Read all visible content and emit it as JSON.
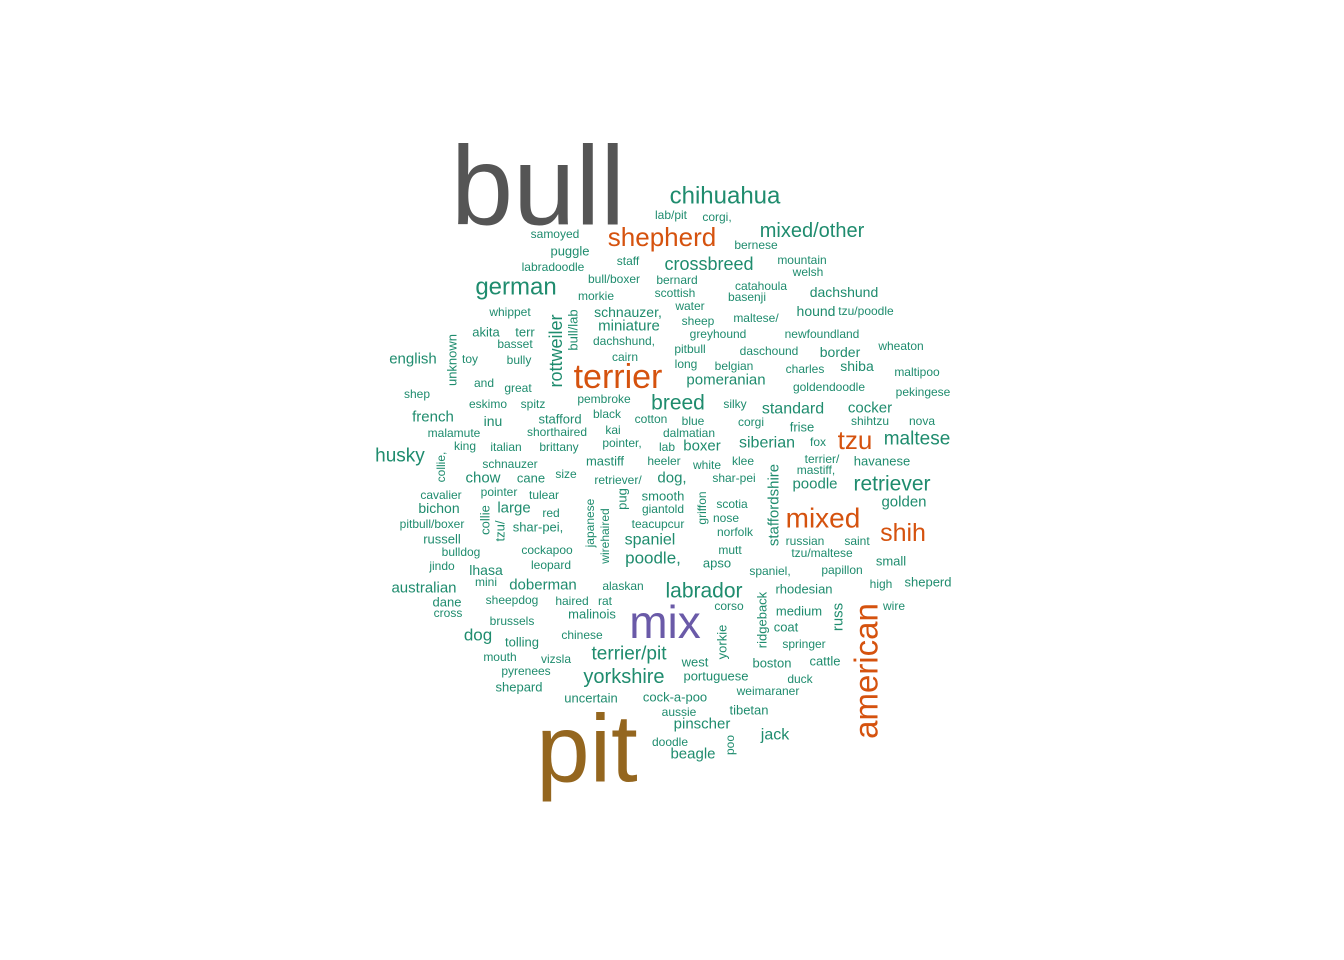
{
  "wordcloud": {
    "colors": {
      "top1": "#555555",
      "top2": "#94661f",
      "top3": "#6a5aa8",
      "orange": "#d5520e",
      "teal": "#1f8c6e"
    },
    "words": [
      {
        "text": "bull",
        "tier": "top1"
      },
      {
        "text": "pit",
        "tier": "top2"
      },
      {
        "text": "mix",
        "tier": "top3"
      },
      {
        "text": "american",
        "tier": "orange"
      },
      {
        "text": "terrier",
        "tier": "orange"
      },
      {
        "text": "shepherd",
        "tier": "orange"
      },
      {
        "text": "mixed",
        "tier": "orange"
      },
      {
        "text": "shih",
        "tier": "orange"
      },
      {
        "text": "tzu",
        "tier": "orange"
      },
      {
        "text": "chihuahua",
        "tier": "teal"
      },
      {
        "text": "german",
        "tier": "teal"
      },
      {
        "text": "mixed/other",
        "tier": "teal"
      },
      {
        "text": "crossbreed",
        "tier": "teal"
      },
      {
        "text": "retriever",
        "tier": "teal"
      },
      {
        "text": "labrador",
        "tier": "teal"
      },
      {
        "text": "yorkshire",
        "tier": "teal"
      },
      {
        "text": "breed",
        "tier": "teal"
      },
      {
        "text": "terrier/pit",
        "tier": "teal"
      },
      {
        "text": "maltese",
        "tier": "teal"
      },
      {
        "text": "husky",
        "tier": "teal"
      },
      {
        "text": "poodle,",
        "tier": "teal"
      },
      {
        "text": "rottweiler",
        "tier": "teal"
      },
      {
        "text": "dog",
        "tier": "teal"
      },
      {
        "text": "spaniel",
        "tier": "teal"
      },
      {
        "text": "siberian",
        "tier": "teal"
      },
      {
        "text": "standard",
        "tier": "teal"
      },
      {
        "text": "pomeranian",
        "tier": "teal"
      },
      {
        "text": "cocker",
        "tier": "teal"
      },
      {
        "text": "golden",
        "tier": "teal"
      },
      {
        "text": "poodle",
        "tier": "teal"
      },
      {
        "text": "beagle",
        "tier": "teal"
      },
      {
        "text": "jack",
        "tier": "teal"
      },
      {
        "text": "miniature",
        "tier": "teal"
      },
      {
        "text": "schnauzer,",
        "tier": "teal"
      },
      {
        "text": "dachshund",
        "tier": "teal"
      },
      {
        "text": "english",
        "tier": "teal"
      },
      {
        "text": "french",
        "tier": "teal"
      },
      {
        "text": "chow",
        "tier": "teal"
      },
      {
        "text": "large",
        "tier": "teal"
      },
      {
        "text": "dog,",
        "tier": "teal"
      },
      {
        "text": "boxer",
        "tier": "teal"
      },
      {
        "text": "shiba",
        "tier": "teal"
      },
      {
        "text": "hound",
        "tier": "teal"
      },
      {
        "text": "border",
        "tier": "teal"
      },
      {
        "text": "australian",
        "tier": "teal"
      },
      {
        "text": "doberman",
        "tier": "teal"
      },
      {
        "text": "pinscher",
        "tier": "teal"
      },
      {
        "text": "staffordshire",
        "tier": "teal"
      },
      {
        "text": "russ",
        "tier": "teal"
      },
      {
        "text": "unknown",
        "tier": "teal"
      },
      {
        "text": "bull/lab",
        "tier": "teal"
      },
      {
        "text": "ridgeback",
        "tier": "teal"
      },
      {
        "text": "yorkie",
        "tier": "teal"
      },
      {
        "text": "collie,",
        "tier": "teal"
      },
      {
        "text": "collie",
        "tier": "teal"
      },
      {
        "text": "tzu/",
        "tier": "teal"
      },
      {
        "text": "japanese",
        "tier": "teal"
      },
      {
        "text": "wirehaired",
        "tier": "teal"
      },
      {
        "text": "pug",
        "tier": "teal"
      },
      {
        "text": "griffon",
        "tier": "teal"
      },
      {
        "text": "poo",
        "tier": "teal"
      },
      {
        "text": "lab/pit",
        "tier": "teal"
      },
      {
        "text": "corgi,",
        "tier": "teal"
      },
      {
        "text": "samoyed",
        "tier": "teal"
      },
      {
        "text": "bernese",
        "tier": "teal"
      },
      {
        "text": "puggle",
        "tier": "teal"
      },
      {
        "text": "staff",
        "tier": "teal"
      },
      {
        "text": "mountain",
        "tier": "teal"
      },
      {
        "text": "labradoodle",
        "tier": "teal"
      },
      {
        "text": "welsh",
        "tier": "teal"
      },
      {
        "text": "bull/boxer",
        "tier": "teal"
      },
      {
        "text": "bernard",
        "tier": "teal"
      },
      {
        "text": "catahoula",
        "tier": "teal"
      },
      {
        "text": "morkie",
        "tier": "teal"
      },
      {
        "text": "scottish",
        "tier": "teal"
      },
      {
        "text": "basenji",
        "tier": "teal"
      },
      {
        "text": "water",
        "tier": "teal"
      },
      {
        "text": "whippet",
        "tier": "teal"
      },
      {
        "text": "sheep",
        "tier": "teal"
      },
      {
        "text": "maltese/",
        "tier": "teal"
      },
      {
        "text": "tzu/poodle",
        "tier": "teal"
      },
      {
        "text": "akita",
        "tier": "teal"
      },
      {
        "text": "terr",
        "tier": "teal"
      },
      {
        "text": "greyhound",
        "tier": "teal"
      },
      {
        "text": "newfoundland",
        "tier": "teal"
      },
      {
        "text": "basset",
        "tier": "teal"
      },
      {
        "text": "dachshund,",
        "tier": "teal"
      },
      {
        "text": "pitbull",
        "tier": "teal"
      },
      {
        "text": "daschound",
        "tier": "teal"
      },
      {
        "text": "wheaton",
        "tier": "teal"
      },
      {
        "text": "toy",
        "tier": "teal"
      },
      {
        "text": "bully",
        "tier": "teal"
      },
      {
        "text": "cairn",
        "tier": "teal"
      },
      {
        "text": "long",
        "tier": "teal"
      },
      {
        "text": "belgian",
        "tier": "teal"
      },
      {
        "text": "charles",
        "tier": "teal"
      },
      {
        "text": "maltipoo",
        "tier": "teal"
      },
      {
        "text": "and",
        "tier": "teal"
      },
      {
        "text": "great",
        "tier": "teal"
      },
      {
        "text": "goldendoodle",
        "tier": "teal"
      },
      {
        "text": "shep",
        "tier": "teal"
      },
      {
        "text": "pekingese",
        "tier": "teal"
      },
      {
        "text": "eskimo",
        "tier": "teal"
      },
      {
        "text": "spitz",
        "tier": "teal"
      },
      {
        "text": "pembroke",
        "tier": "teal"
      },
      {
        "text": "silky",
        "tier": "teal"
      },
      {
        "text": "inu",
        "tier": "teal"
      },
      {
        "text": "stafford",
        "tier": "teal"
      },
      {
        "text": "black",
        "tier": "teal"
      },
      {
        "text": "cotton",
        "tier": "teal"
      },
      {
        "text": "blue",
        "tier": "teal"
      },
      {
        "text": "corgi",
        "tier": "teal"
      },
      {
        "text": "frise",
        "tier": "teal"
      },
      {
        "text": "shihtzu",
        "tier": "teal"
      },
      {
        "text": "nova",
        "tier": "teal"
      },
      {
        "text": "malamute",
        "tier": "teal"
      },
      {
        "text": "shorthaired",
        "tier": "teal"
      },
      {
        "text": "kai",
        "tier": "teal"
      },
      {
        "text": "dalmatian",
        "tier": "teal"
      },
      {
        "text": "king",
        "tier": "teal"
      },
      {
        "text": "italian",
        "tier": "teal"
      },
      {
        "text": "brittany",
        "tier": "teal"
      },
      {
        "text": "pointer,",
        "tier": "teal"
      },
      {
        "text": "lab",
        "tier": "teal"
      },
      {
        "text": "fox",
        "tier": "teal"
      },
      {
        "text": "schnauzer",
        "tier": "teal"
      },
      {
        "text": "mastiff",
        "tier": "teal"
      },
      {
        "text": "heeler",
        "tier": "teal"
      },
      {
        "text": "white",
        "tier": "teal"
      },
      {
        "text": "klee",
        "tier": "teal"
      },
      {
        "text": "terrier/",
        "tier": "teal"
      },
      {
        "text": "havanese",
        "tier": "teal"
      },
      {
        "text": "mastiff,",
        "tier": "teal"
      },
      {
        "text": "cane",
        "tier": "teal"
      },
      {
        "text": "size",
        "tier": "teal"
      },
      {
        "text": "retriever/",
        "tier": "teal"
      },
      {
        "text": "shar-pei",
        "tier": "teal"
      },
      {
        "text": "cavalier",
        "tier": "teal"
      },
      {
        "text": "pointer",
        "tier": "teal"
      },
      {
        "text": "tulear",
        "tier": "teal"
      },
      {
        "text": "smooth",
        "tier": "teal"
      },
      {
        "text": "bichon",
        "tier": "teal"
      },
      {
        "text": "red",
        "tier": "teal"
      },
      {
        "text": "giantold",
        "tier": "teal"
      },
      {
        "text": "scotia",
        "tier": "teal"
      },
      {
        "text": "nose",
        "tier": "teal"
      },
      {
        "text": "pitbull/boxer",
        "tier": "teal"
      },
      {
        "text": "shar-pei,",
        "tier": "teal"
      },
      {
        "text": "teacupcur",
        "tier": "teal"
      },
      {
        "text": "norfolk",
        "tier": "teal"
      },
      {
        "text": "russell",
        "tier": "teal"
      },
      {
        "text": "russian",
        "tier": "teal"
      },
      {
        "text": "saint",
        "tier": "teal"
      },
      {
        "text": "bulldog",
        "tier": "teal"
      },
      {
        "text": "cockapoo",
        "tier": "teal"
      },
      {
        "text": "mutt",
        "tier": "teal"
      },
      {
        "text": "tzu/maltese",
        "tier": "teal"
      },
      {
        "text": "small",
        "tier": "teal"
      },
      {
        "text": "jindo",
        "tier": "teal"
      },
      {
        "text": "leopard",
        "tier": "teal"
      },
      {
        "text": "apso",
        "tier": "teal"
      },
      {
        "text": "lhasa",
        "tier": "teal"
      },
      {
        "text": "spaniel,",
        "tier": "teal"
      },
      {
        "text": "papillon",
        "tier": "teal"
      },
      {
        "text": "mini",
        "tier": "teal"
      },
      {
        "text": "alaskan",
        "tier": "teal"
      },
      {
        "text": "rhodesian",
        "tier": "teal"
      },
      {
        "text": "high",
        "tier": "teal"
      },
      {
        "text": "sheperd",
        "tier": "teal"
      },
      {
        "text": "dane",
        "tier": "teal"
      },
      {
        "text": "sheepdog",
        "tier": "teal"
      },
      {
        "text": "haired",
        "tier": "teal"
      },
      {
        "text": "rat",
        "tier": "teal"
      },
      {
        "text": "corso",
        "tier": "teal"
      },
      {
        "text": "wire",
        "tier": "teal"
      },
      {
        "text": "cross",
        "tier": "teal"
      },
      {
        "text": "malinois",
        "tier": "teal"
      },
      {
        "text": "medium",
        "tier": "teal"
      },
      {
        "text": "brussels",
        "tier": "teal"
      },
      {
        "text": "coat",
        "tier": "teal"
      },
      {
        "text": "chinese",
        "tier": "teal"
      },
      {
        "text": "tolling",
        "tier": "teal"
      },
      {
        "text": "springer",
        "tier": "teal"
      },
      {
        "text": "mouth",
        "tier": "teal"
      },
      {
        "text": "vizsla",
        "tier": "teal"
      },
      {
        "text": "west",
        "tier": "teal"
      },
      {
        "text": "boston",
        "tier": "teal"
      },
      {
        "text": "cattle",
        "tier": "teal"
      },
      {
        "text": "pyrenees",
        "tier": "teal"
      },
      {
        "text": "portuguese",
        "tier": "teal"
      },
      {
        "text": "duck",
        "tier": "teal"
      },
      {
        "text": "shepard",
        "tier": "teal"
      },
      {
        "text": "weimaraner",
        "tier": "teal"
      },
      {
        "text": "uncertain",
        "tier": "teal"
      },
      {
        "text": "cock-a-poo",
        "tier": "teal"
      },
      {
        "text": "aussie",
        "tier": "teal"
      },
      {
        "text": "tibetan",
        "tier": "teal"
      },
      {
        "text": "doodle",
        "tier": "teal"
      }
    ]
  }
}
